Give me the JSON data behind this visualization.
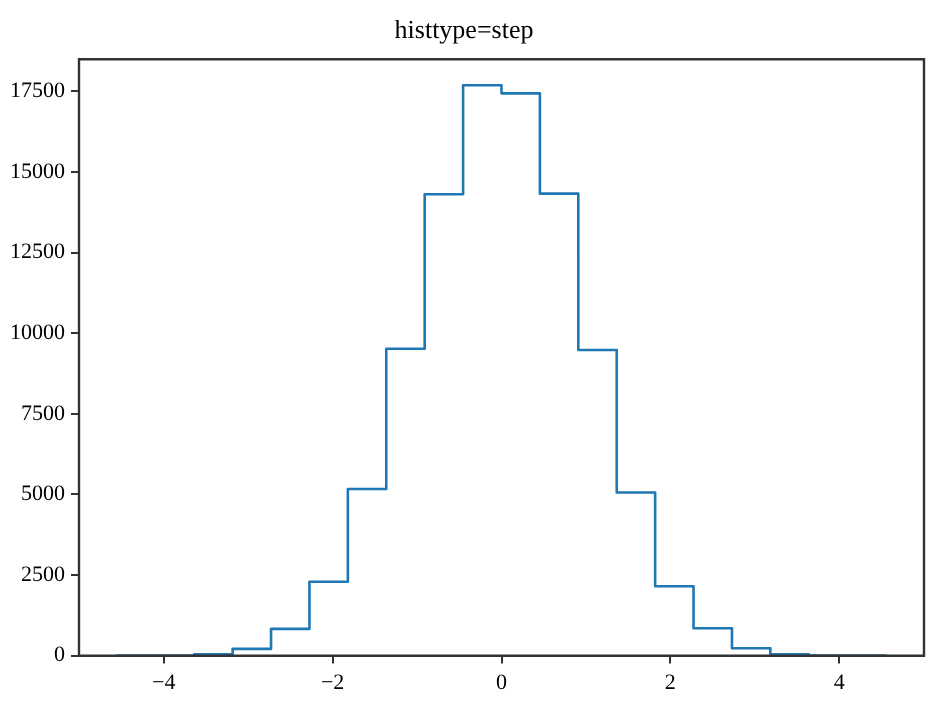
{
  "chart_data": {
    "type": "histogram",
    "title": "histtype=step",
    "bins": [
      -4.55,
      -4.095,
      -3.64,
      -3.185,
      -2.73,
      -2.275,
      -1.82,
      -1.365,
      -0.91,
      -0.455,
      0,
      0.455,
      0.91,
      1.365,
      1.82,
      2.275,
      2.73,
      3.185,
      3.64,
      4.095,
      4.55
    ],
    "values": [
      1,
      5,
      40,
      210,
      830,
      2290,
      5170,
      9520,
      14310,
      17690,
      17440,
      14330,
      9480,
      5060,
      2150,
      850,
      230,
      40,
      5,
      1
    ],
    "color": "#1f77b4",
    "xlim": [
      -5.005,
      5.005
    ],
    "xticks": [
      -4,
      -2,
      0,
      2,
      4
    ],
    "ylim": [
      0,
      18500
    ],
    "yticks": [
      0,
      2500,
      5000,
      7500,
      10000,
      12500,
      15000,
      17500
    ],
    "grid": false,
    "legend": false
  }
}
